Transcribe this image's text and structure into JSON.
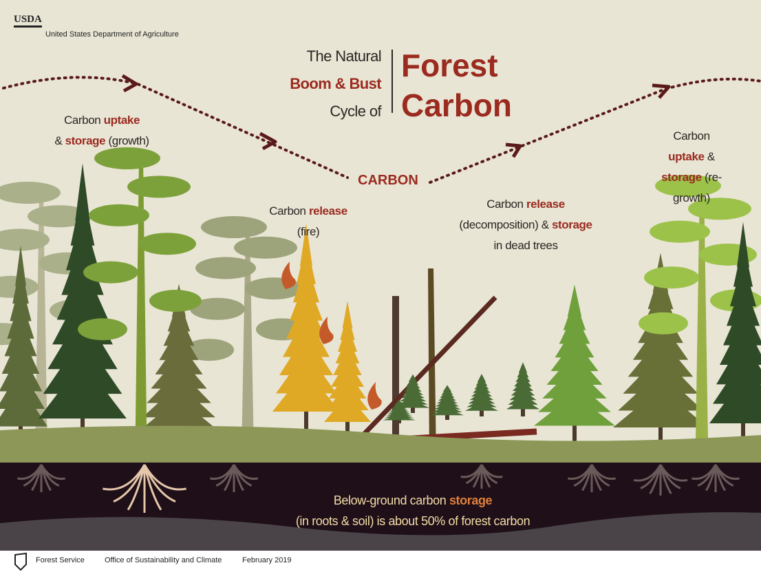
{
  "header": {
    "logo": "USDA",
    "agency": "United States Department of Agriculture"
  },
  "title": {
    "lead": [
      {
        "text": "The Natural"
      },
      {
        "text": "Boom & Bust",
        "highlight": true
      },
      {
        "text": "Cycle of"
      }
    ],
    "main": [
      "Forest",
      "Carbon"
    ]
  },
  "cycle_label": "CARBON",
  "stages": [
    {
      "lines": [
        [
          {
            "text": "Carbon"
          },
          {
            "text": "uptake",
            "highlight": true
          }
        ],
        [
          {
            "text": "&"
          },
          {
            "text": "storage",
            "highlight": true
          },
          {
            "text": "(growth)"
          }
        ]
      ]
    },
    {
      "lines": [
        [
          {
            "text": "Carbon"
          },
          {
            "text": "release",
            "highlight": true
          }
        ],
        [
          {
            "text": "(fire)"
          }
        ]
      ]
    },
    {
      "lines": [
        [
          {
            "text": "Carbon"
          },
          {
            "text": "release",
            "highlight": true
          }
        ],
        [
          {
            "text": "(decomposition) &"
          },
          {
            "text": "storage",
            "highlight": true
          }
        ],
        [
          {
            "text": "in dead trees"
          }
        ]
      ]
    },
    {
      "lines": [
        [
          {
            "text": "Carbon"
          },
          {
            "text": "uptake",
            "highlight": true
          },
          {
            "text": "&"
          }
        ],
        [
          {
            "text": "storage",
            "highlight": true
          },
          {
            "text": "(re-growth)"
          }
        ]
      ]
    }
  ],
  "below_ground": {
    "lines": [
      [
        {
          "text": "Below-ground carbon"
        },
        {
          "text": "storage",
          "highlight": true
        }
      ],
      [
        {
          "text": "(in roots & soil) is about 50% of forest carbon"
        }
      ]
    ]
  },
  "footer": {
    "agency": "Forest Service",
    "office": "Office of Sustainability and Climate",
    "date": "February  2019"
  }
}
